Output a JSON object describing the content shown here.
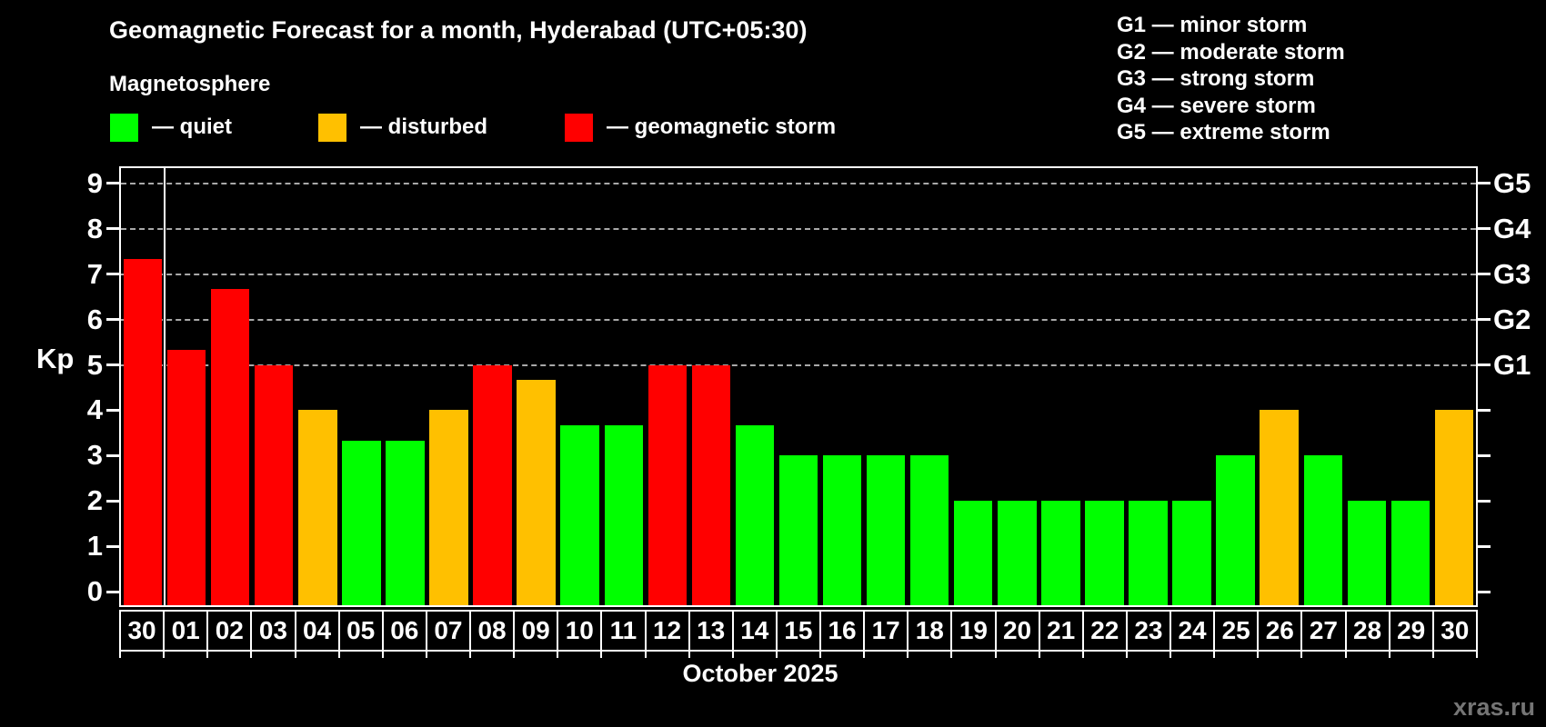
{
  "title": "Geomagnetic Forecast for a month, Hyderabad (UTC+05:30)",
  "subtitle": "Magnetosphere",
  "legend": {
    "quiet": {
      "label": "— quiet",
      "color": "#00ff00"
    },
    "disturbed": {
      "label": "— disturbed",
      "color": "#ffc000"
    },
    "storm": {
      "label": "— geomagnetic storm",
      "color": "#ff0000"
    }
  },
  "storm_scale_legend": [
    "G1 — minor storm",
    "G2 — moderate storm",
    "G3 — strong storm",
    "G4 — severe storm",
    "G5 — extreme storm"
  ],
  "axes": {
    "y_label": "Kp",
    "y_ticks": [
      0,
      1,
      2,
      3,
      4,
      5,
      6,
      7,
      8,
      9
    ],
    "right_labels": [
      {
        "kp": 5,
        "label": "G1"
      },
      {
        "kp": 6,
        "label": "G2"
      },
      {
        "kp": 7,
        "label": "G3"
      },
      {
        "kp": 8,
        "label": "G4"
      },
      {
        "kp": 9,
        "label": "G5"
      }
    ],
    "x_label": "October 2025"
  },
  "watermark": "xras.ru",
  "chart_data": {
    "type": "bar",
    "title": "Geomagnetic Forecast for a month, Hyderabad (UTC+05:30)",
    "xlabel": "October 2025",
    "ylabel": "Kp",
    "ylim": [
      -0.3,
      9.34
    ],
    "grid": "dashed horizontal at Kp 5-9 only",
    "legend_position": "top",
    "categories": [
      "30",
      "01",
      "02",
      "03",
      "04",
      "05",
      "06",
      "07",
      "08",
      "09",
      "10",
      "11",
      "12",
      "13",
      "14",
      "15",
      "16",
      "17",
      "18",
      "19",
      "20",
      "21",
      "22",
      "23",
      "24",
      "25",
      "26",
      "27",
      "28",
      "29",
      "30"
    ],
    "values": [
      7.33,
      5.33,
      6.67,
      5.0,
      4.0,
      3.33,
      3.33,
      4.0,
      5.0,
      4.67,
      3.67,
      3.67,
      5.0,
      5.0,
      3.67,
      3.0,
      3.0,
      3.0,
      3.0,
      2.0,
      2.0,
      2.0,
      2.0,
      2.0,
      2.0,
      3.0,
      4.0,
      3.0,
      2.0,
      2.0,
      4.0
    ],
    "statuses": [
      "storm",
      "storm",
      "storm",
      "storm",
      "disturbed",
      "quiet",
      "quiet",
      "disturbed",
      "storm",
      "disturbed",
      "quiet",
      "quiet",
      "storm",
      "storm",
      "quiet",
      "quiet",
      "quiet",
      "quiet",
      "quiet",
      "quiet",
      "quiet",
      "quiet",
      "quiet",
      "quiet",
      "quiet",
      "quiet",
      "disturbed",
      "quiet",
      "quiet",
      "quiet",
      "disturbed"
    ],
    "separator_after_category_index": 0
  }
}
